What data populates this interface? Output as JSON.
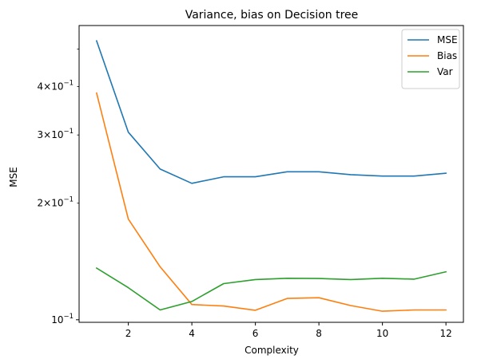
{
  "chart_data": {
    "type": "line",
    "title": "Variance, bias on Decision tree",
    "xlabel": "Complexity",
    "ylabel": "MSE",
    "yscale": "log",
    "xlim": [
      0.45,
      12.55
    ],
    "ylim": [
      0.0985,
      0.575
    ],
    "x": [
      1,
      2,
      3,
      4,
      5,
      6,
      7,
      8,
      9,
      10,
      11,
      12
    ],
    "x_ticks": [
      2,
      4,
      6,
      8,
      10,
      12
    ],
    "y_major_ticks": [
      {
        "value": 0.1,
        "label": "10",
        "exp": "−1"
      }
    ],
    "y_minor_ticks": [
      {
        "value": 0.2,
        "label": "2×10",
        "exp": "−1"
      },
      {
        "value": 0.3,
        "label": "3×10",
        "exp": "−1"
      },
      {
        "value": 0.4,
        "label": "4×10",
        "exp": "−1"
      }
    ],
    "y_unlabeled_minor_ticks": [
      0.5
    ],
    "grid": false,
    "legend_position": "top-right",
    "series": [
      {
        "name": "MSE",
        "color": "#1f77b4",
        "values": [
          0.525,
          0.305,
          0.245,
          0.225,
          0.234,
          0.234,
          0.241,
          0.241,
          0.237,
          0.235,
          0.235,
          0.239
        ]
      },
      {
        "name": "Bias",
        "color": "#ff7f0e",
        "values": [
          0.385,
          0.182,
          0.137,
          0.1095,
          0.1085,
          0.1058,
          0.1135,
          0.114,
          0.1088,
          0.1052,
          0.106,
          0.106
        ]
      },
      {
        "name": "Var",
        "color": "#2ca02c",
        "values": [
          0.136,
          0.121,
          0.106,
          0.1115,
          0.124,
          0.127,
          0.128,
          0.1278,
          0.127,
          0.128,
          0.1273,
          0.133
        ]
      }
    ]
  }
}
